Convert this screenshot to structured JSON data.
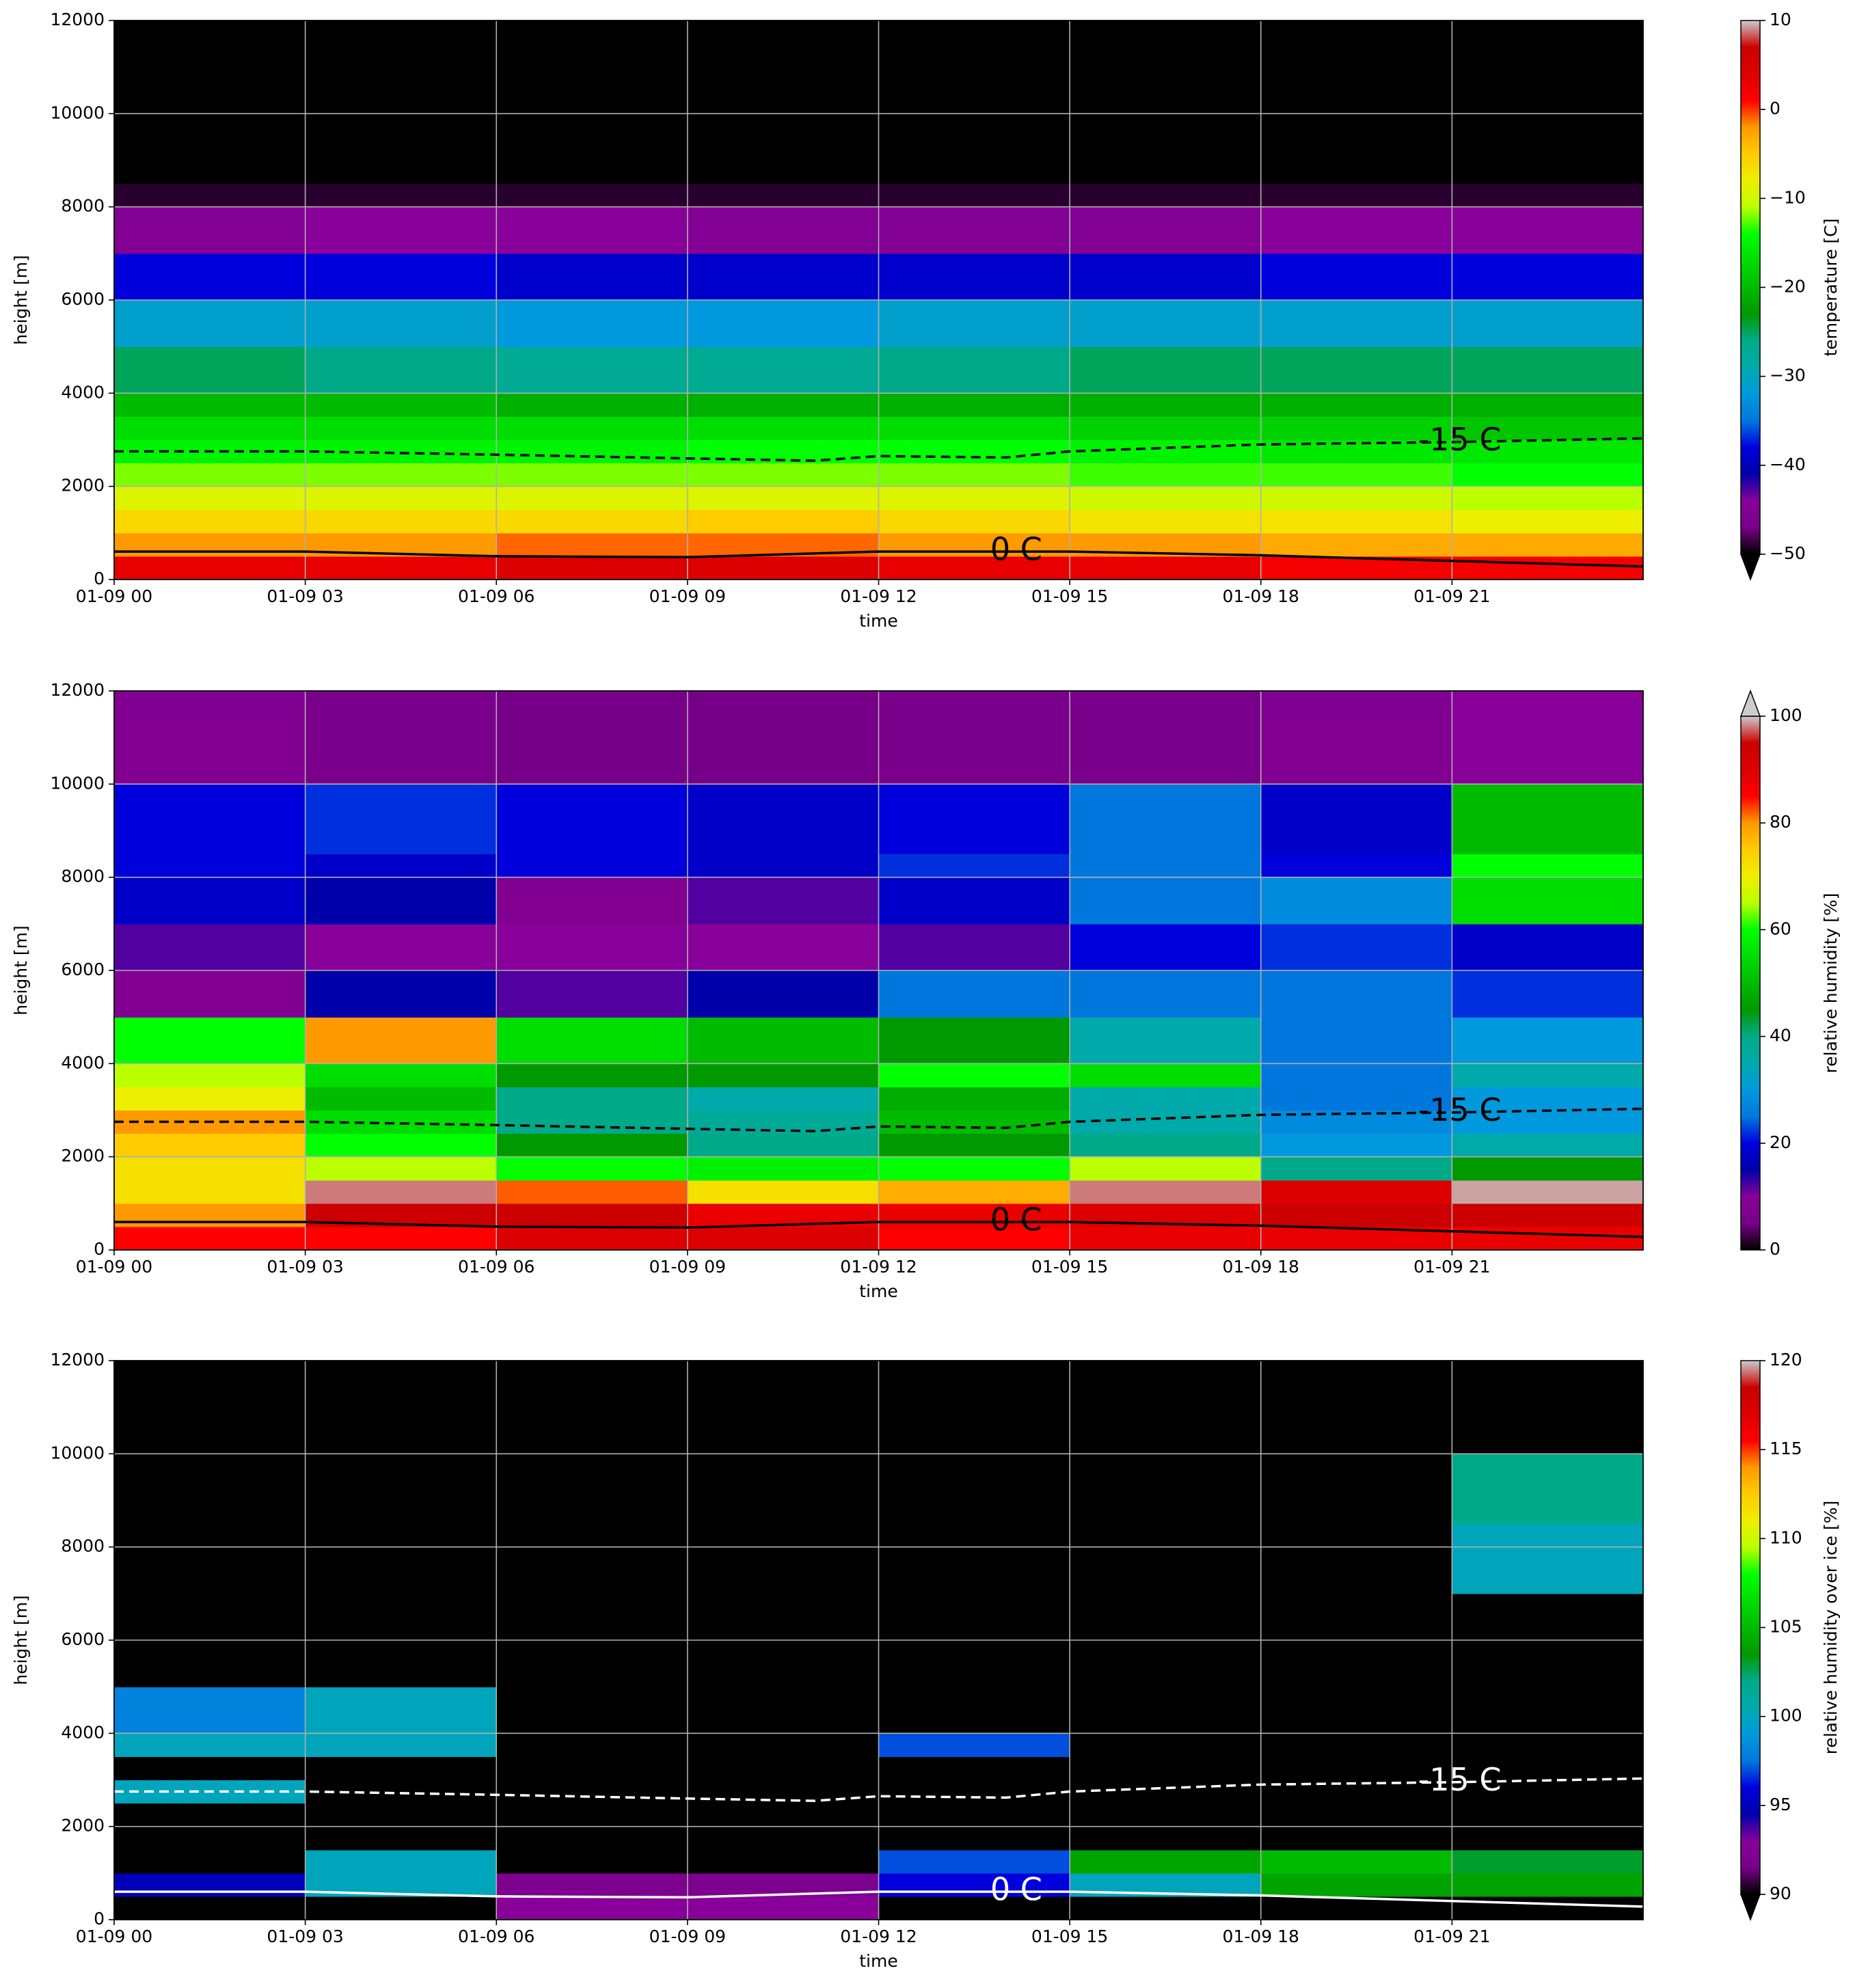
{
  "chart_data": [
    {
      "type": "heatmap",
      "xlabel": "time",
      "ylabel": "height [m]",
      "colormap": "nipy_spectral",
      "grid": true,
      "xlim": [
        0,
        24
      ],
      "ylim": [
        0,
        12000
      ],
      "xticks": [
        {
          "value": 0,
          "label": "01-09 00"
        },
        {
          "value": 3,
          "label": "01-09 03"
        },
        {
          "value": 6,
          "label": "01-09 06"
        },
        {
          "value": 9,
          "label": "01-09 09"
        },
        {
          "value": 12,
          "label": "01-09 12"
        },
        {
          "value": 15,
          "label": "01-09 15"
        },
        {
          "value": 18,
          "label": "01-09 18"
        },
        {
          "value": 21,
          "label": "01-09 21"
        }
      ],
      "yticks": [
        0,
        2000,
        4000,
        6000,
        8000,
        10000,
        12000
      ],
      "x_edges": [
        0,
        3,
        6,
        9,
        12,
        15,
        18,
        21,
        24
      ],
      "y_edges": [
        0,
        500,
        1000,
        1500,
        2000,
        2500,
        3000,
        3500,
        4000,
        5000,
        6000,
        7000,
        8000,
        8500,
        10000,
        12000
      ],
      "z": [
        [
          3,
          3,
          4,
          4,
          3,
          3,
          2,
          2
        ],
        [
          -2,
          -2,
          -1,
          -1,
          -2,
          -2,
          -3,
          -3
        ],
        [
          -6,
          -6,
          -6,
          -5,
          -6,
          -7,
          -7,
          -8
        ],
        [
          -9,
          -9,
          -9,
          -9,
          -9,
          -10,
          -10,
          -11
        ],
        [
          -12,
          -12,
          -12,
          -12,
          -12,
          -13,
          -13,
          -14
        ],
        [
          -15,
          -15,
          -15,
          -14,
          -14,
          -15,
          -16,
          -16
        ],
        [
          -17,
          -17,
          -17,
          -17,
          -17,
          -18,
          -18,
          -19
        ],
        [
          -20,
          -20,
          -21,
          -21,
          -21,
          -21,
          -21,
          -21
        ],
        [
          -25,
          -26,
          -27,
          -27,
          -26,
          -25,
          -25,
          -25
        ],
        [
          -31,
          -31,
          -32,
          -32,
          -31,
          -31,
          -31,
          -31
        ],
        [
          -38,
          -38,
          -39,
          -39,
          -39,
          -39,
          -38,
          -38
        ],
        [
          -45,
          -44,
          -44,
          -45,
          -45,
          -45,
          -44,
          -44
        ],
        [
          -49,
          -49,
          -49,
          -49,
          -49,
          -49,
          -49,
          -49
        ],
        [
          -56,
          -56,
          -56,
          -56,
          -56,
          -56,
          -56,
          -56
        ],
        [
          -60,
          -60,
          -60,
          -60,
          -60,
          -60,
          -60,
          -60
        ]
      ],
      "colorbar": {
        "label": "temperature [C]",
        "lim": [
          -50,
          10
        ],
        "extend": "min",
        "ticks": [
          {
            "value": -50,
            "label": "−50"
          },
          {
            "value": -40,
            "label": "−40"
          },
          {
            "value": -30,
            "label": "−30"
          },
          {
            "value": -20,
            "label": "−20"
          },
          {
            "value": -10,
            "label": "−10"
          },
          0,
          10
        ]
      },
      "contours": [
        {
          "label": "-15 C",
          "linestyle": "dashed",
          "color": "#000000",
          "x": [
            0,
            3,
            6,
            9,
            11,
            12,
            14,
            15,
            18,
            21,
            24
          ],
          "y": [
            2750,
            2750,
            2680,
            2600,
            2550,
            2650,
            2620,
            2750,
            2900,
            2950,
            3030
          ]
        },
        {
          "label": "0 C",
          "linestyle": "solid",
          "color": "#000000",
          "x": [
            0,
            3,
            6,
            9,
            12,
            15,
            18,
            21,
            24
          ],
          "y": [
            600,
            600,
            500,
            480,
            600,
            600,
            520,
            400,
            280
          ]
        }
      ]
    },
    {
      "type": "heatmap",
      "xlabel": "time",
      "ylabel": "height [m]",
      "colormap": "nipy_spectral",
      "grid": true,
      "xlim": [
        0,
        24
      ],
      "ylim": [
        0,
        12000
      ],
      "xticks": [
        {
          "value": 0,
          "label": "01-09 00"
        },
        {
          "value": 3,
          "label": "01-09 03"
        },
        {
          "value": 6,
          "label": "01-09 06"
        },
        {
          "value": 9,
          "label": "01-09 09"
        },
        {
          "value": 12,
          "label": "01-09 12"
        },
        {
          "value": 15,
          "label": "01-09 15"
        },
        {
          "value": 18,
          "label": "01-09 18"
        },
        {
          "value": 21,
          "label": "01-09 21"
        }
      ],
      "yticks": [
        0,
        2000,
        4000,
        6000,
        8000,
        10000,
        12000
      ],
      "x_edges": [
        0,
        3,
        6,
        9,
        12,
        15,
        18,
        21,
        24
      ],
      "y_edges": [
        0,
        500,
        1000,
        1500,
        2000,
        2500,
        3000,
        3500,
        4000,
        5000,
        6000,
        7000,
        8000,
        8500,
        10000,
        12000
      ],
      "z": [
        [
          85,
          85,
          90,
          90,
          85,
          88,
          88,
          88
        ],
        [
          80,
          95,
          95,
          88,
          88,
          90,
          95,
          95
        ],
        [
          72,
          98,
          82,
          72,
          78,
          98,
          90,
          99
        ],
        [
          72,
          65,
          60,
          58,
          60,
          65,
          40,
          45
        ],
        [
          75,
          60,
          45,
          40,
          45,
          40,
          30,
          35
        ],
        [
          80,
          55,
          40,
          38,
          50,
          35,
          28,
          30
        ],
        [
          70,
          50,
          40,
          35,
          48,
          35,
          25,
          30
        ],
        [
          65,
          55,
          45,
          45,
          60,
          55,
          25,
          35
        ],
        [
          60,
          80,
          55,
          50,
          45,
          35,
          25,
          30
        ],
        [
          8,
          15,
          12,
          15,
          25,
          25,
          25,
          22
        ],
        [
          12,
          10,
          10,
          10,
          12,
          20,
          22,
          18
        ],
        [
          18,
          15,
          8,
          12,
          18,
          25,
          28,
          55
        ],
        [
          20,
          18,
          20,
          18,
          22,
          25,
          20,
          60
        ],
        [
          20,
          22,
          20,
          18,
          20,
          25,
          18,
          50
        ],
        [
          8,
          6,
          5,
          5,
          6,
          6,
          8,
          10
        ]
      ],
      "colorbar": {
        "label": "relative humidity [%]",
        "lim": [
          0,
          100
        ],
        "extend": "max",
        "ticks": [
          0,
          20,
          40,
          60,
          80,
          100
        ]
      },
      "contours": [
        {
          "label": "-15 C",
          "linestyle": "dashed",
          "color": "#000000",
          "x": [
            0,
            3,
            6,
            9,
            11,
            12,
            14,
            15,
            18,
            21,
            24
          ],
          "y": [
            2750,
            2750,
            2680,
            2600,
            2550,
            2650,
            2620,
            2750,
            2900,
            2950,
            3030
          ]
        },
        {
          "label": "0 C",
          "linestyle": "solid",
          "color": "#000000",
          "x": [
            0,
            3,
            6,
            9,
            12,
            15,
            18,
            21,
            24
          ],
          "y": [
            600,
            600,
            500,
            480,
            600,
            600,
            520,
            400,
            280
          ]
        }
      ]
    },
    {
      "type": "heatmap",
      "xlabel": "time",
      "ylabel": "height [m]",
      "colormap": "nipy_spectral",
      "grid": true,
      "xlim": [
        0,
        24
      ],
      "ylim": [
        0,
        12000
      ],
      "xticks": [
        {
          "value": 0,
          "label": "01-09 00"
        },
        {
          "value": 3,
          "label": "01-09 03"
        },
        {
          "value": 6,
          "label": "01-09 06"
        },
        {
          "value": 9,
          "label": "01-09 09"
        },
        {
          "value": 12,
          "label": "01-09 12"
        },
        {
          "value": 15,
          "label": "01-09 15"
        },
        {
          "value": 18,
          "label": "01-09 18"
        },
        {
          "value": 21,
          "label": "01-09 21"
        }
      ],
      "yticks": [
        0,
        2000,
        4000,
        6000,
        8000,
        10000,
        12000
      ],
      "x_edges": [
        0,
        3,
        6,
        9,
        12,
        15,
        18,
        21,
        24
      ],
      "y_edges": [
        0,
        500,
        1000,
        1500,
        2000,
        2500,
        3000,
        3500,
        4000,
        5000,
        6000,
        7000,
        8000,
        8500,
        10000,
        12000
      ],
      "z": [
        [
          85,
          85,
          93,
          93,
          85,
          85,
          85,
          85
        ],
        [
          95,
          100,
          92,
          92,
          96,
          100,
          104,
          104
        ],
        [
          85,
          100,
          85,
          85,
          97,
          104,
          105,
          103
        ],
        [
          85,
          85,
          85,
          85,
          85,
          85,
          85,
          85
        ],
        [
          85,
          85,
          85,
          85,
          85,
          85,
          85,
          85
        ],
        [
          100,
          85,
          85,
          85,
          85,
          85,
          85,
          85
        ],
        [
          85,
          85,
          85,
          85,
          85,
          85,
          85,
          85
        ],
        [
          100,
          100,
          85,
          85,
          97,
          85,
          85,
          85
        ],
        [
          98,
          100,
          85,
          85,
          85,
          85,
          85,
          85
        ],
        [
          85,
          85,
          85,
          85,
          85,
          85,
          85,
          85
        ],
        [
          85,
          85,
          85,
          85,
          85,
          85,
          85,
          85
        ],
        [
          85,
          85,
          85,
          85,
          85,
          85,
          85,
          100
        ],
        [
          85,
          85,
          85,
          85,
          85,
          85,
          85,
          100
        ],
        [
          85,
          85,
          85,
          85,
          85,
          85,
          85,
          102
        ],
        [
          85,
          85,
          85,
          85,
          85,
          85,
          85,
          85
        ]
      ],
      "colorbar": {
        "label": "relative humidity over ice [%]",
        "lim": [
          90,
          120
        ],
        "extend": "min",
        "ticks": [
          90,
          95,
          100,
          105,
          110,
          115,
          120
        ]
      },
      "contours": [
        {
          "label": "-15 C",
          "linestyle": "dashed",
          "color": "#ffffff",
          "x": [
            0,
            3,
            6,
            9,
            11,
            12,
            14,
            15,
            18,
            21,
            24
          ],
          "y": [
            2750,
            2750,
            2680,
            2600,
            2550,
            2650,
            2620,
            2750,
            2900,
            2950,
            3030
          ]
        },
        {
          "label": "0 C",
          "linestyle": "solid",
          "color": "#ffffff",
          "x": [
            0,
            3,
            6,
            9,
            12,
            15,
            18,
            21,
            24
          ],
          "y": [
            600,
            600,
            500,
            480,
            600,
            600,
            520,
            400,
            280
          ]
        }
      ]
    }
  ]
}
